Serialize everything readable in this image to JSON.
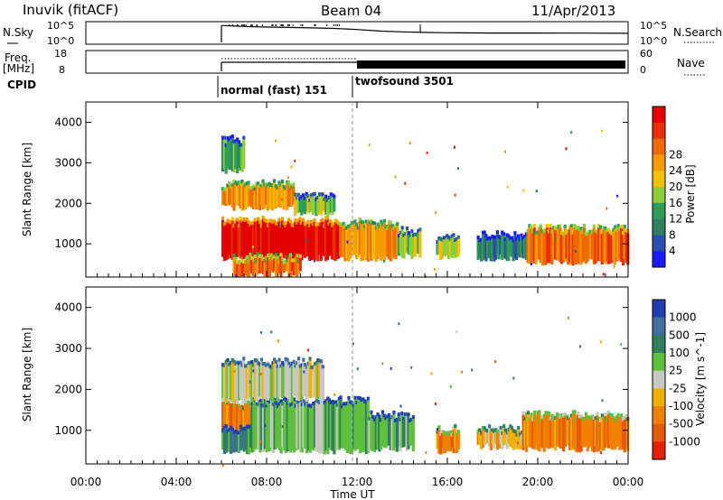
{
  "header": {
    "station": "Inuvik (fitACF)",
    "beam": "Beam 04",
    "date": "11/Apr/2013"
  },
  "top_panels": {
    "nsky_label": "N.Sky",
    "nsearch_label": "N.Search",
    "nsky_ticks": [
      "10^5",
      "10^0"
    ],
    "nsearch_ticks": [
      "10^5",
      "10^0"
    ],
    "freq_label": "Freq.",
    "freq_unit": "[MHz]",
    "freq_ticks": [
      "18",
      "8"
    ],
    "nave_label": "Nave",
    "nave_ticks": [
      "60",
      "0"
    ],
    "cpid_label": "CPID",
    "cpid_segments": [
      {
        "name": "normal (fast) 151",
        "start": 6.0,
        "end": 12.0
      },
      {
        "name": "twofsound 3501",
        "start": 12.0,
        "end": 24.0
      }
    ]
  },
  "colors": {
    "power": [
      "#1a1aff",
      "#2a4fb0",
      "#2f7f5f",
      "#2e9e57",
      "#8fce3a",
      "#f5c000",
      "#f59a00",
      "#f06a00",
      "#e83000",
      "#e30000"
    ],
    "velocity": [
      "#1f3fb0",
      "#3f6fa0",
      "#2f7f5f",
      "#5fbf3f",
      "#c8c8c0",
      "#f0b000",
      "#f08000",
      "#e85a00",
      "#e32000"
    ]
  },
  "chart_data": [
    {
      "type": "line",
      "title": "N.Sky / N.Search",
      "x": [
        6,
        7,
        8,
        9,
        10,
        11,
        12,
        13,
        14,
        15,
        16,
        18,
        20,
        22,
        24
      ],
      "series": [
        {
          "name": "N.Sky",
          "values": [
            30000,
            16000,
            11000,
            9000,
            7000,
            5000,
            2500,
            1000,
            600,
            450,
            350,
            300,
            300,
            280,
            250
          ]
        }
      ]
    },
    {
      "type": "line",
      "title": "Freq. / Nave",
      "x": [
        6,
        12,
        12,
        24
      ],
      "series": [
        {
          "name": "Freq.",
          "values": [
            11,
            11,
            11,
            11
          ]
        },
        {
          "name": "Nave",
          "values": [
            16,
            16,
            15,
            15
          ]
        }
      ]
    },
    {
      "type": "heatmap",
      "ylabel": "Slant Range [km]",
      "colorbar_label": "Power [dB]",
      "colorbar_ticks": [
        "4",
        "8",
        "12",
        "16",
        "20",
        "24",
        "28"
      ],
      "ylim": [
        180,
        4500
      ],
      "y_ticks": [
        1000,
        2000,
        3000,
        4000
      ],
      "blobs": [
        {
          "t0": 6.0,
          "t1": 11.2,
          "r0": 650,
          "r1": 1500,
          "level": 9
        },
        {
          "t0": 11.2,
          "t1": 13.8,
          "r0": 650,
          "r1": 1450,
          "level": 6
        },
        {
          "t0": 13.8,
          "t1": 14.8,
          "r0": 700,
          "r1": 1250,
          "level": 4
        },
        {
          "t0": 6.0,
          "t1": 9.2,
          "r0": 1900,
          "r1": 2400,
          "level": 6
        },
        {
          "t0": 9.2,
          "t1": 11.0,
          "r0": 1750,
          "r1": 2100,
          "level": 4
        },
        {
          "t0": 6.0,
          "t1": 7.0,
          "r0": 2800,
          "r1": 3500,
          "level": 3
        },
        {
          "t0": 6.5,
          "t1": 9.5,
          "r0": 250,
          "r1": 600,
          "level": 7
        },
        {
          "t0": 15.5,
          "t1": 16.5,
          "r0": 650,
          "r1": 1100,
          "level": 4
        },
        {
          "t0": 17.3,
          "t1": 19.5,
          "r0": 650,
          "r1": 1150,
          "level": 2
        },
        {
          "t0": 19.5,
          "t1": 24.0,
          "r0": 550,
          "r1": 1300,
          "level": 7
        }
      ]
    },
    {
      "type": "heatmap",
      "ylabel": "Slant Range [km]",
      "xlabel": "Time UT",
      "colorbar_label": "Velocity [m s^-1]",
      "colorbar_ticks": [
        "1000",
        "500",
        "100",
        "25",
        "-25",
        "-100",
        "-500",
        "-1000"
      ],
      "ylim": [
        180,
        4500
      ],
      "y_ticks": [
        1000,
        2000,
        3000,
        4000
      ],
      "x_ticks": [
        "00:00",
        "04:00",
        "08:00",
        "12:00",
        "16:00",
        "20:00",
        "00:00"
      ],
      "x_tick_hours": [
        0,
        4,
        8,
        12,
        16,
        20,
        24
      ],
      "blobs": [
        {
          "t0": 6.0,
          "t1": 9.5,
          "r0": 1000,
          "r1": 1600,
          "level": 6
        },
        {
          "t0": 6.0,
          "t1": 7.3,
          "r0": 500,
          "r1": 1000,
          "level": 2
        },
        {
          "t0": 7.3,
          "t1": 12.5,
          "r0": 500,
          "r1": 1650,
          "level": 3
        },
        {
          "t0": 12.5,
          "t1": 14.5,
          "r0": 550,
          "r1": 1300,
          "level": 3
        },
        {
          "t0": 6.0,
          "t1": 10.5,
          "r0": 1750,
          "r1": 2600,
          "level": 4
        },
        {
          "t0": 15.5,
          "t1": 16.5,
          "r0": 500,
          "r1": 950,
          "level": 6
        },
        {
          "t0": 17.3,
          "t1": 19.3,
          "r0": 600,
          "r1": 950,
          "level": 5
        },
        {
          "t0": 19.3,
          "t1": 24.0,
          "r0": 550,
          "r1": 1300,
          "level": 6
        }
      ]
    }
  ]
}
